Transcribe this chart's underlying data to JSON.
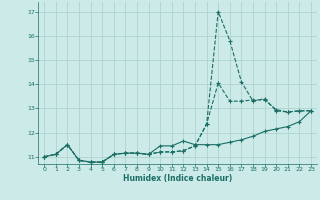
{
  "xlabel": "Humidex (Indice chaleur)",
  "bg_color": "#cceae7",
  "grid_color": "#aed4d0",
  "line_color": "#1a6e66",
  "xlim": [
    -0.5,
    23.5
  ],
  "ylim": [
    10.7,
    17.4
  ],
  "yticks": [
    11,
    12,
    13,
    14,
    15,
    16,
    17
  ],
  "xticks": [
    0,
    1,
    2,
    3,
    4,
    5,
    6,
    7,
    8,
    9,
    10,
    11,
    12,
    13,
    14,
    15,
    16,
    17,
    18,
    19,
    20,
    21,
    22,
    23
  ],
  "line1_x": [
    0,
    1,
    2,
    3,
    4,
    5,
    6,
    7,
    8,
    9,
    10,
    11,
    12,
    13,
    14,
    15,
    16,
    17,
    18,
    19,
    20,
    21,
    22,
    23
  ],
  "line1_y": [
    11.0,
    11.1,
    11.5,
    10.85,
    10.78,
    10.78,
    11.1,
    11.15,
    11.15,
    11.1,
    11.2,
    11.2,
    11.25,
    11.45,
    12.35,
    17.0,
    15.8,
    14.1,
    13.3,
    13.4,
    12.9,
    12.85,
    12.9,
    12.9
  ],
  "line2_x": [
    0,
    1,
    2,
    3,
    4,
    5,
    6,
    7,
    8,
    9,
    10,
    11,
    12,
    13,
    14,
    15,
    16,
    17,
    18,
    19,
    20,
    21,
    22,
    23
  ],
  "line2_y": [
    11.0,
    11.1,
    11.5,
    10.85,
    10.78,
    10.78,
    11.1,
    11.15,
    11.15,
    11.1,
    11.2,
    11.2,
    11.25,
    11.45,
    12.35,
    14.05,
    13.3,
    13.3,
    13.35,
    13.35,
    12.95,
    12.85,
    12.9,
    12.9
  ],
  "line3_x": [
    0,
    1,
    2,
    3,
    4,
    5,
    6,
    7,
    8,
    9,
    10,
    11,
    12,
    13,
    14,
    15,
    16,
    17,
    18,
    19,
    20,
    21,
    22,
    23
  ],
  "line3_y": [
    11.0,
    11.1,
    11.5,
    10.85,
    10.78,
    10.78,
    11.1,
    11.15,
    11.15,
    11.1,
    11.45,
    11.45,
    11.65,
    11.5,
    11.5,
    11.5,
    11.6,
    11.7,
    11.85,
    12.05,
    12.15,
    12.25,
    12.45,
    12.9
  ]
}
